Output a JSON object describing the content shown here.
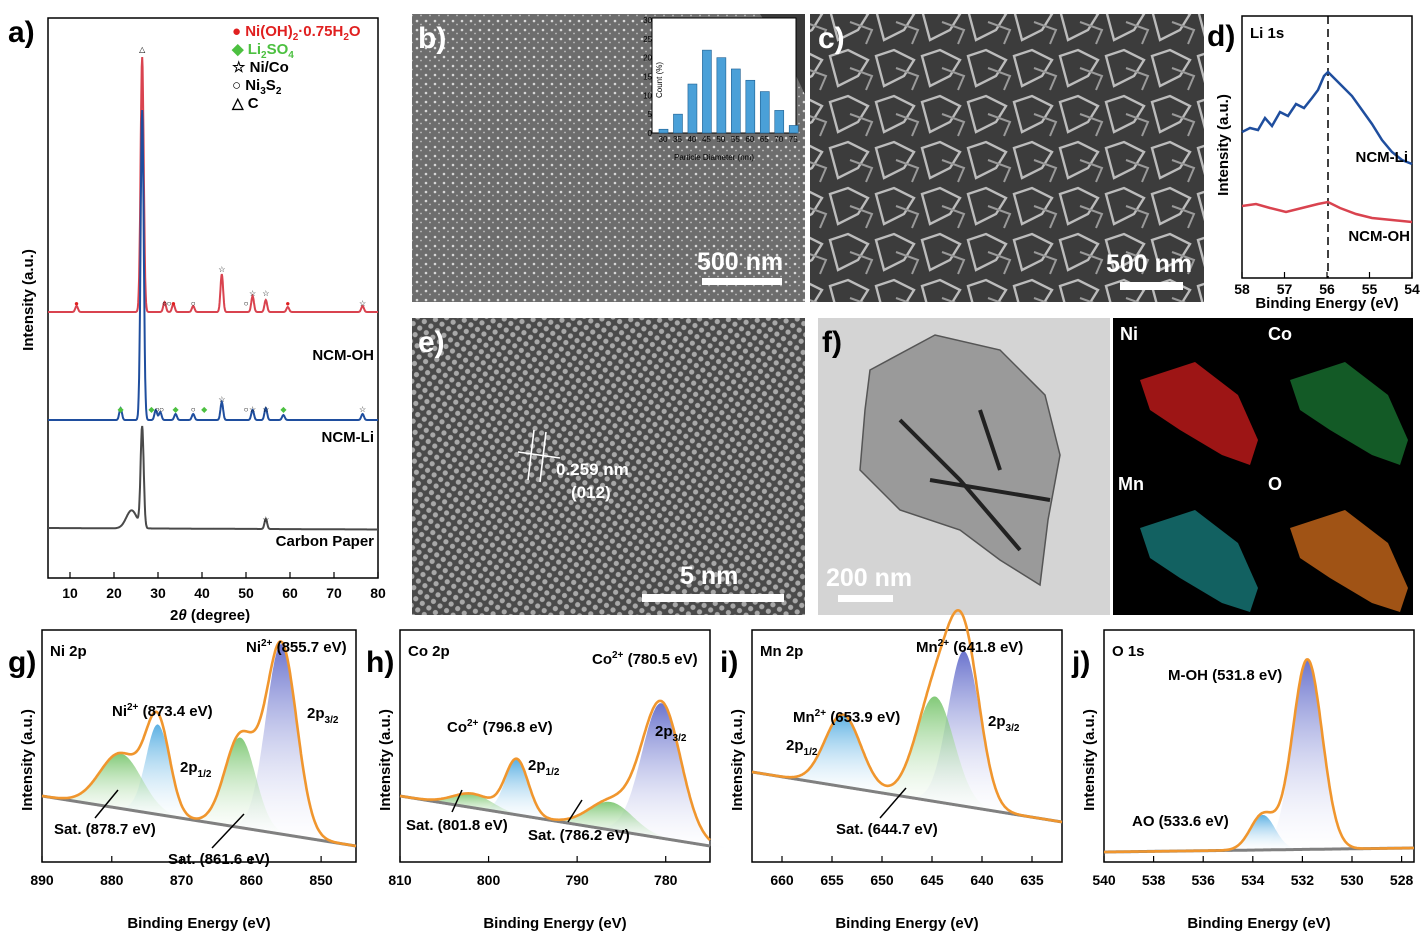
{
  "panels": {
    "a": {
      "label": "a)",
      "legend": [
        {
          "symbol": "●",
          "text": "Ni(OH)",
          "sub1": "2",
          "mid": "·0.75H",
          "sub2": "2",
          "end": "O",
          "color": "#e02020"
        },
        {
          "symbol": "◆",
          "text": "Li",
          "sub1": "2",
          "mid": "SO",
          "sub2": "4",
          "end": "",
          "color": "#4cc040"
        },
        {
          "symbol": "☆",
          "text": "Ni/Co",
          "sub1": "",
          "mid": "",
          "sub2": "",
          "end": "",
          "color": "#000000"
        },
        {
          "symbol": "○",
          "text": "Ni",
          "sub1": "3",
          "mid": "S",
          "sub2": "2",
          "end": "",
          "color": "#000000"
        },
        {
          "symbol": "△",
          "text": "C",
          "sub1": "",
          "mid": "",
          "sub2": "",
          "end": "",
          "color": "#000000"
        }
      ],
      "xlabel_theta": "θ",
      "xlabel_pre": "2",
      "xlabel_post": " (degree)",
      "ylabel": "Intensity (a.u.)",
      "series_labels": [
        "NCM-OH",
        "NCM-Li",
        "Carbon Paper"
      ],
      "colors": [
        "#d9434f",
        "#1f4e9e",
        "#4a4a4a"
      ]
    },
    "b": {
      "label": "b)",
      "scale": "500 nm",
      "inset_ylabel": "Count (%)",
      "inset_xlabel": "Particle Diameter (nm)"
    },
    "c": {
      "label": "c)",
      "scale": "500 nm"
    },
    "d": {
      "label": "d)",
      "title": "Li 1s",
      "ylabel": "Intensity (a.u.)",
      "xlabel": "Binding Energy (eV)",
      "series": [
        "NCM-Li",
        "NCM-OH"
      ]
    },
    "e": {
      "label": "e)",
      "scale": "5 nm",
      "spacing": "0.259 nm",
      "plane": "(012)"
    },
    "f": {
      "label": "f)",
      "scale": "200 nm",
      "elements": [
        "Ni",
        "Co",
        "Mn",
        "O"
      ]
    },
    "g": {
      "label": "g)",
      "title": "Ni 2p",
      "ylabel": "Intensity (a.u.)",
      "xlabel": "Binding Energy (eV)",
      "peak1": "Ni",
      "peak1_sup": "2+",
      "peak1_val": " (855.7 eV)",
      "peak2": "Ni",
      "peak2_sup": "2+",
      "peak2_val": " (873.4 eV)",
      "orb1": "2p",
      "orb1_sub": "3/2",
      "orb2": "2p",
      "orb2_sub": "1/2",
      "sat1": "Sat. (878.7 eV)",
      "sat2": "Sat. (861.6 eV)"
    },
    "h": {
      "label": "h)",
      "title": "Co 2p",
      "ylabel": "Intensity (a.u.)",
      "xlabel": "Binding Energy (eV)",
      "peak1": "Co",
      "peak1_sup": "2+",
      "peak1_val": " (780.5 eV)",
      "peak2": "Co",
      "peak2_sup": "2+",
      "peak2_val": " (796.8 eV)",
      "orb1": "2p",
      "orb1_sub": "3/2",
      "orb2": "2p",
      "orb2_sub": "1/2",
      "sat1": "Sat. (801.8 eV)",
      "sat2": "Sat. (786.2 eV)"
    },
    "i": {
      "label": "i)",
      "title": "Mn 2p",
      "ylabel": "Intensity (a.u.)",
      "xlabel": "Binding Energy (eV)",
      "peak1": "Mn",
      "peak1_sup": "2+",
      "peak1_val": " (641.8 eV)",
      "peak2": "Mn",
      "peak2_sup": "2+",
      "peak2_val": " (653.9 eV)",
      "orb1": "2p",
      "orb1_sub": "3/2",
      "orb2": "2p",
      "orb2_sub": "1/2",
      "sat1": "Sat. (644.7 eV)"
    },
    "j": {
      "label": "j)",
      "title": "O 1s",
      "ylabel": "Intensity (a.u.)",
      "xlabel": "Binding Energy (eV)",
      "peak1": "M-OH (531.8 eV)",
      "peak2": "AO (533.6 eV)"
    }
  },
  "chart_data": [
    {
      "panel": "a",
      "type": "line",
      "xlim": [
        5,
        80
      ],
      "xticks": [
        10,
        20,
        30,
        40,
        50,
        60,
        70,
        80
      ],
      "series": [
        {
          "name": "NCM-OH",
          "peaks_2theta": [
            11.5,
            26.4,
            31.5,
            33.5,
            38,
            44.5,
            51.5,
            54.5,
            59.5,
            76.5
          ]
        },
        {
          "name": "NCM-Li",
          "peaks_2theta": [
            21.5,
            26.4,
            29.5,
            30.5,
            34,
            38,
            44.5,
            51.5,
            54.5,
            58.5,
            76.5
          ]
        },
        {
          "name": "Carbon Paper",
          "peaks_2theta": [
            26.4,
            54.5
          ]
        }
      ]
    },
    {
      "panel": "b-inset",
      "type": "bar",
      "categories": [
        30,
        35,
        40,
        45,
        50,
        55,
        60,
        65,
        70,
        75
      ],
      "values": [
        1,
        5,
        13,
        22,
        20,
        17,
        14,
        11,
        6,
        2
      ],
      "ylim": [
        0,
        30
      ],
      "yticks": [
        0,
        5,
        10,
        15,
        20,
        25,
        30
      ]
    },
    {
      "panel": "d",
      "type": "line",
      "xlim": [
        58,
        54
      ],
      "xticks": [
        58,
        57,
        56,
        55,
        54
      ],
      "marker_line": 56
    },
    {
      "panel": "g",
      "type": "line",
      "xlim": [
        890,
        845
      ],
      "xticks": [
        890,
        880,
        870,
        860,
        850
      ],
      "fits": [
        {
          "center": 855.7,
          "label": "Ni2+ 2p3/2"
        },
        {
          "center": 873.4,
          "label": "Ni2+ 2p1/2"
        },
        {
          "center": 878.7,
          "label": "Sat."
        },
        {
          "center": 861.6,
          "label": "Sat."
        }
      ]
    },
    {
      "panel": "h",
      "type": "line",
      "xlim": [
        810,
        775
      ],
      "xticks": [
        810,
        800,
        790,
        780
      ],
      "fits": [
        {
          "center": 780.5
        },
        {
          "center": 796.8
        },
        {
          "center": 801.8
        },
        {
          "center": 786.2
        }
      ]
    },
    {
      "panel": "i",
      "type": "line",
      "xlim": [
        663,
        632
      ],
      "xticks": [
        660,
        655,
        650,
        645,
        640,
        635
      ],
      "fits": [
        {
          "center": 641.8
        },
        {
          "center": 653.9
        },
        {
          "center": 644.7
        }
      ]
    },
    {
      "panel": "j",
      "type": "line",
      "xlim": [
        540,
        527.5
      ],
      "xticks": [
        540,
        538,
        536,
        534,
        532,
        530,
        528
      ],
      "fits": [
        {
          "center": 531.8
        },
        {
          "center": 533.6
        }
      ]
    }
  ]
}
